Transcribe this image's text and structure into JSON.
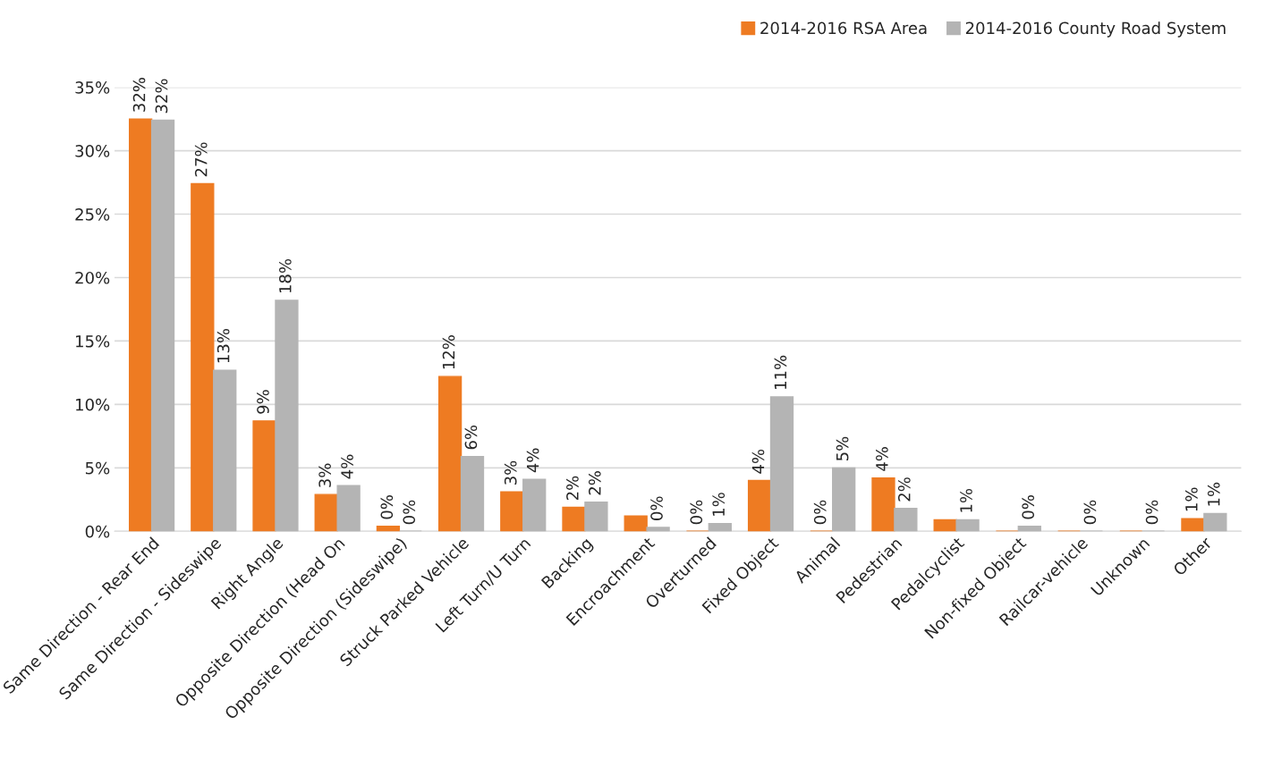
{
  "chart_data": {
    "type": "bar",
    "categories": [
      "Same Direction - Rear End",
      "Same Direction - Sideswipe",
      "Right Angle",
      "Opposite Direction (Head On",
      "Opposite Direction (Sideswipe)",
      "Struck Parked Vehicle",
      "Left Turn/U Turn",
      "Backing",
      "Encroachment",
      "Overturned",
      "Fixed Object",
      "Animal",
      "Pedestrian",
      "Pedalcyclist",
      "Non-fixed Object",
      "Railcar-vehicle",
      "Unknown",
      "Other"
    ],
    "series": [
      {
        "name": "2014-2016 RSA Area",
        "color": "#ee7b22",
        "values": [
          32.5,
          27.4,
          8.7,
          2.9,
          0.4,
          12.2,
          3.1,
          1.9,
          1.2,
          0,
          4.0,
          0,
          4.2,
          0.9,
          0,
          0,
          0,
          1.0
        ],
        "value_labels": [
          "32%",
          "27%",
          "9%",
          "3%",
          "0%",
          "12%",
          "3%",
          "2%",
          null,
          "0%",
          "4%",
          "0%",
          "4%",
          null,
          null,
          null,
          null,
          "1%"
        ]
      },
      {
        "name": "2014-2016 County Road System",
        "color": "#b4b4b4",
        "values": [
          32.4,
          12.7,
          18.2,
          3.6,
          0,
          5.9,
          4.1,
          2.3,
          0.3,
          0.6,
          10.6,
          5.0,
          1.8,
          0.9,
          0.4,
          0,
          0,
          1.4
        ],
        "value_labels": [
          "32%",
          "13%",
          "18%",
          "4%",
          "0%",
          "6%",
          "4%",
          "2%",
          "0%",
          "1%",
          "11%",
          "5%",
          "2%",
          "1%",
          "0%",
          "0%",
          "0%",
          "1%"
        ]
      }
    ],
    "ylim": [
      0,
      35
    ],
    "yticks": [
      {
        "value": 0,
        "label": "0%"
      },
      {
        "value": 5,
        "label": "5%"
      },
      {
        "value": 10,
        "label": "10%"
      },
      {
        "value": 15,
        "label": "15%"
      },
      {
        "value": 20,
        "label": "20%"
      },
      {
        "value": 25,
        "label": "25%"
      },
      {
        "value": 30,
        "label": "30%"
      },
      {
        "value": 35,
        "label": "35%"
      }
    ],
    "grid": "y",
    "legend": "top right"
  }
}
